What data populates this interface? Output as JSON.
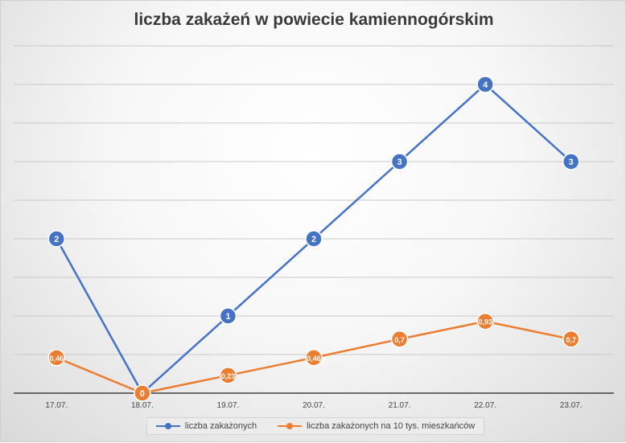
{
  "chart_data": {
    "type": "line",
    "title": "liczba zakażeń w powiecie kamiennogórskim",
    "categories": [
      "17.07.",
      "18.07.",
      "19.07.",
      "20.07.",
      "21.07.",
      "22.07.",
      "23.07."
    ],
    "ylim": [
      0,
      4.5
    ],
    "grid": true,
    "legend_position": "bottom",
    "series": [
      {
        "name": "liczba zakażonych",
        "color": "#4472c4",
        "values": [
          2,
          0,
          1,
          2,
          3,
          4,
          3
        ],
        "labels": [
          "2",
          "0",
          "1",
          "2",
          "3",
          "4",
          "3"
        ]
      },
      {
        "name": "liczba zakażonych na 10 tys. mieszkańców",
        "color": "#ed7d31",
        "values": [
          0.46,
          0,
          0.23,
          0.46,
          0.7,
          0.93,
          0.7
        ],
        "labels": [
          "0,46",
          "0",
          "0,23",
          "0,46",
          "0,7",
          "0,93",
          "0,7"
        ]
      }
    ]
  }
}
